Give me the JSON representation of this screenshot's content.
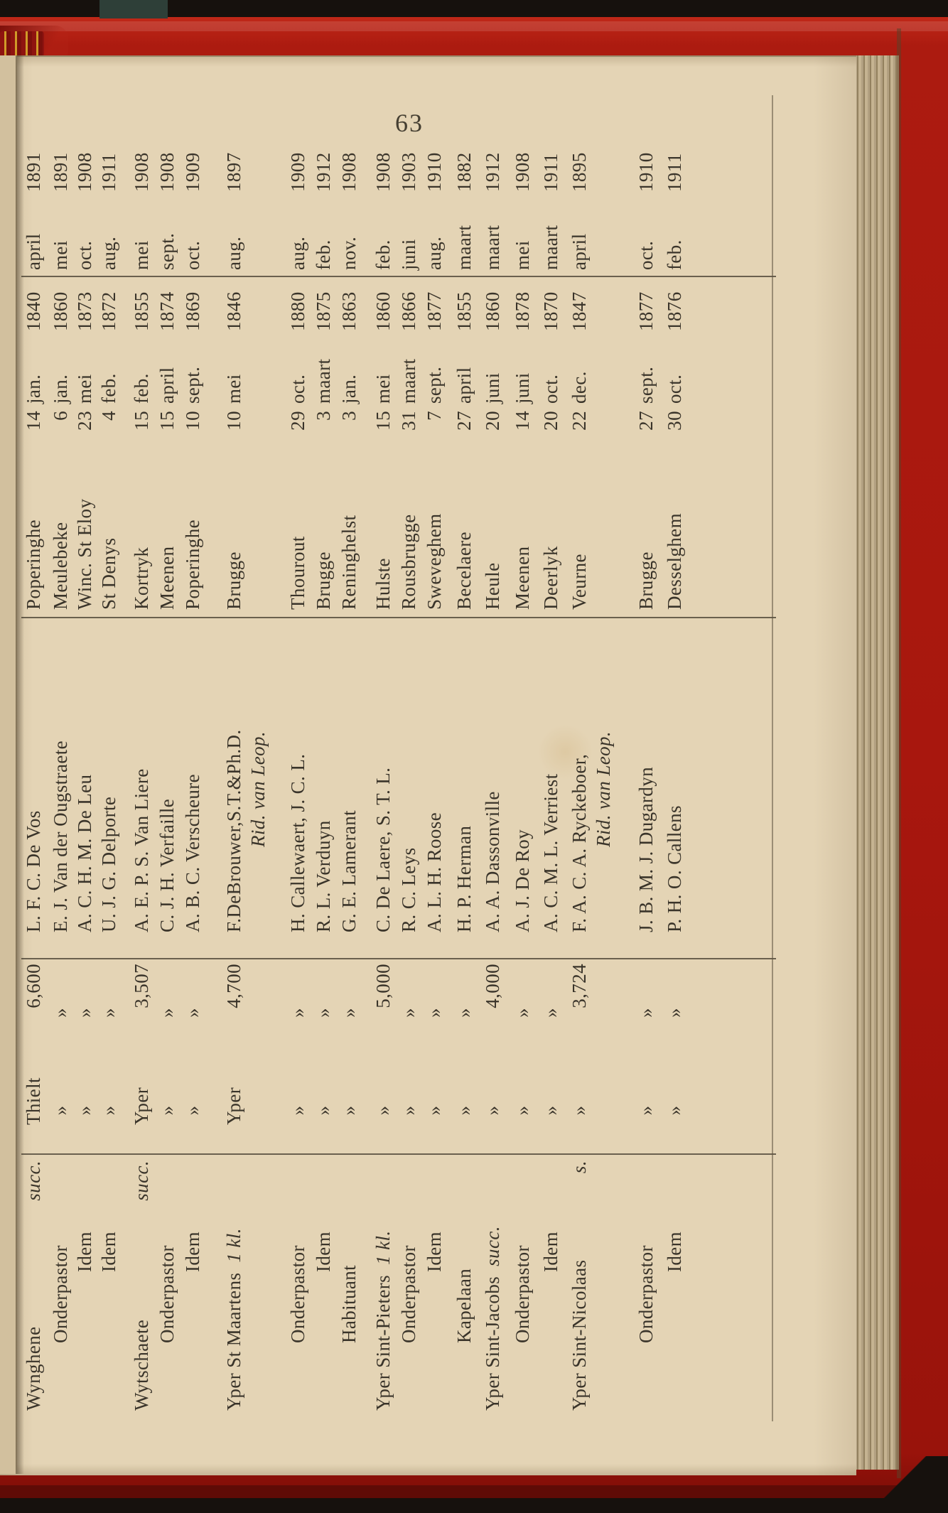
{
  "page_number": "63",
  "book": {
    "cover_color": "#a8170e",
    "paper_color": "#e4d4b5",
    "text_color": "#3a342a"
  },
  "table": {
    "ditto_mark": "»",
    "rows": [
      {
        "position": "Wynghene",
        "position_suffix": "succ.",
        "position_style": "parish-justified",
        "deanery": "Thielt",
        "salary": "6,600",
        "name": "L. F. C. De Vos",
        "birthplace": "Poperinghe",
        "birth_day": "14",
        "birth_month": "jan.",
        "birth_year": "1840",
        "app_month": "april",
        "app_year": "1891"
      },
      {
        "position": "Onderpastor",
        "position_suffix": "",
        "position_style": "indent-1",
        "deanery": "»",
        "salary": "»",
        "name": "E. J. Van der Ougstraete",
        "birthplace": "Meulebeke",
        "birth_day": "6",
        "birth_month": "jan.",
        "birth_year": "1860",
        "app_month": "mei",
        "app_year": "1891"
      },
      {
        "position": "Idem",
        "position_suffix": "",
        "position_style": "indent-2",
        "deanery": "»",
        "salary": "»",
        "name": "A. C. H. M. De Leu",
        "birthplace": "Winc. St Eloy",
        "birth_day": "23",
        "birth_month": "mei",
        "birth_year": "1873",
        "app_month": "oct.",
        "app_year": "1908"
      },
      {
        "position": "Idem",
        "position_suffix": "",
        "position_style": "indent-2",
        "deanery": "»",
        "salary": "»",
        "name": "U. J. G. Delporte",
        "birthplace": "St Denys",
        "birth_day": "4",
        "birth_month": "feb.",
        "birth_year": "1872",
        "app_month": "aug.",
        "app_year": "1911"
      },
      {
        "position": "Wytschaete",
        "position_suffix": "succ.",
        "position_style": "parish-justified",
        "deanery": "Yper",
        "salary": "3,507",
        "name": "A. E. P. S. Van Liere",
        "birthplace": "Kortryk",
        "birth_day": "15",
        "birth_month": "feb.",
        "birth_year": "1855",
        "app_month": "mei",
        "app_year": "1908"
      },
      {
        "position": "Onderpastor",
        "position_suffix": "",
        "position_style": "indent-1",
        "deanery": "»",
        "salary": "»",
        "name": "C. J. H. Verfaille",
        "birthplace": "Meenen",
        "birth_day": "15",
        "birth_month": "april",
        "birth_year": "1874",
        "app_month": "sept.",
        "app_year": "1908"
      },
      {
        "position": "Idem",
        "position_suffix": "",
        "position_style": "indent-2",
        "deanery": "»",
        "salary": "»",
        "name": "A. B. C. Verscheure",
        "birthplace": "Poperinghe",
        "birth_day": "10",
        "birth_month": "sept.",
        "birth_year": "1869",
        "app_month": "oct.",
        "app_year": "1909"
      },
      {
        "position": "Yper St Maartens",
        "position_suffix": "1 kl.",
        "position_style": "parish-inline",
        "deanery": "Yper",
        "salary": "4,700",
        "name": "F.DeBrouwer,S.T.&Ph.D.",
        "name_line2": "Rid. van Leop.",
        "birthplace": "Brugge",
        "birth_day": "10",
        "birth_month": "mei",
        "birth_year": "1846",
        "app_month": "aug.",
        "app_year": "1897"
      },
      {
        "position": "Onderpastor",
        "position_suffix": "",
        "position_style": "indent-1",
        "deanery": "»",
        "salary": "»",
        "name": "H. Callewaert, J. C. L.",
        "birthplace": "Thourout",
        "birth_day": "29",
        "birth_month": "oct.",
        "birth_year": "1880",
        "app_month": "aug.",
        "app_year": "1909"
      },
      {
        "position": "Idem",
        "position_suffix": "",
        "position_style": "indent-2",
        "deanery": "»",
        "salary": "»",
        "name": "R. L. Verduyn",
        "birthplace": "Brugge",
        "birth_day": "3",
        "birth_month": "maart",
        "birth_year": "1875",
        "app_month": "feb.",
        "app_year": "1912"
      },
      {
        "position": "Habituant",
        "position_suffix": "",
        "position_style": "indent-1",
        "deanery": "»",
        "salary": "»",
        "name": "G. E. Lamerant",
        "birthplace": "Reninghelst",
        "birth_day": "3",
        "birth_month": "jan.",
        "birth_year": "1863",
        "app_month": "nov.",
        "app_year": "1908"
      },
      {
        "position": "Yper Sint-Pieters",
        "position_suffix": "1 kl.",
        "position_style": "parish-inline",
        "deanery": "»",
        "salary": "5,000",
        "name": "C. De Laere, S. T. L.",
        "birthplace": "Hulste",
        "birth_day": "15",
        "birth_month": "mei",
        "birth_year": "1860",
        "app_month": "feb.",
        "app_year": "1908"
      },
      {
        "position": "Onderpastor",
        "position_suffix": "",
        "position_style": "indent-1",
        "deanery": "»",
        "salary": "»",
        "name": "R. C. Leys",
        "birthplace": "Rousbrugge",
        "birth_day": "31",
        "birth_month": "maart",
        "birth_year": "1866",
        "app_month": "juni",
        "app_year": "1903"
      },
      {
        "position": "Idem",
        "position_suffix": "",
        "position_style": "indent-2",
        "deanery": "»",
        "salary": "»",
        "name": "A. L. H. Roose",
        "birthplace": "Sweveghem",
        "birth_day": "7",
        "birth_month": "sept.",
        "birth_year": "1877",
        "app_month": "aug.",
        "app_year": "1910"
      },
      {
        "position": "Kapelaan",
        "position_suffix": "",
        "position_style": "indent-1",
        "deanery": "»",
        "salary": "»",
        "name": "H. P. Herman",
        "birthplace": "Becelaere",
        "birth_day": "27",
        "birth_month": "april",
        "birth_year": "1855",
        "app_month": "maart",
        "app_year": "1882"
      },
      {
        "position": "Yper Sint-Jacobs",
        "position_suffix": "succ.",
        "position_style": "parish-inline",
        "deanery": "»",
        "salary": "4,000",
        "name": "A. A. Dassonville",
        "birthplace": "Heule",
        "birth_day": "20",
        "birth_month": "juni",
        "birth_year": "1860",
        "app_month": "maart",
        "app_year": "1912"
      },
      {
        "position": "Onderpastor",
        "position_suffix": "",
        "position_style": "indent-1",
        "deanery": "»",
        "salary": "»",
        "name": "A. J. De Roy",
        "birthplace": "Meenen",
        "birth_day": "14",
        "birth_month": "juni",
        "birth_year": "1878",
        "app_month": "mei",
        "app_year": "1908"
      },
      {
        "position": "Idem",
        "position_suffix": "",
        "position_style": "indent-2",
        "deanery": "»",
        "salary": "»",
        "name": "A. C. M. L. Verriest",
        "birthplace": "Deerlyk",
        "birth_day": "20",
        "birth_month": "oct.",
        "birth_year": "1870",
        "app_month": "maart",
        "app_year": "1911"
      },
      {
        "position": "Yper Sint-Nicolaas",
        "position_suffix": "s.",
        "position_style": "parish-justified",
        "deanery": "»",
        "salary": "3,724",
        "name": "F. A. C. A. Ryckeboer,",
        "name_line2": "Rid. van Leop.",
        "birthplace": "Veurne",
        "birth_day": "22",
        "birth_month": "dec.",
        "birth_year": "1847",
        "app_month": "april",
        "app_year": "1895"
      },
      {
        "position": "Onderpastor",
        "position_suffix": "",
        "position_style": "indent-1",
        "deanery": "»",
        "salary": "»",
        "name": "J. B. M. J. Dugardyn",
        "birthplace": "Brugge",
        "birth_day": "27",
        "birth_month": "sept.",
        "birth_year": "1877",
        "app_month": "oct.",
        "app_year": "1910"
      },
      {
        "position": "Idem",
        "position_suffix": "",
        "position_style": "indent-2",
        "deanery": "»",
        "salary": "»",
        "name": "P. H. O. Callens",
        "birthplace": "Desselghem",
        "birth_day": "30",
        "birth_month": "oct.",
        "birth_year": "1876",
        "app_month": "feb.",
        "app_year": "1911"
      }
    ]
  }
}
